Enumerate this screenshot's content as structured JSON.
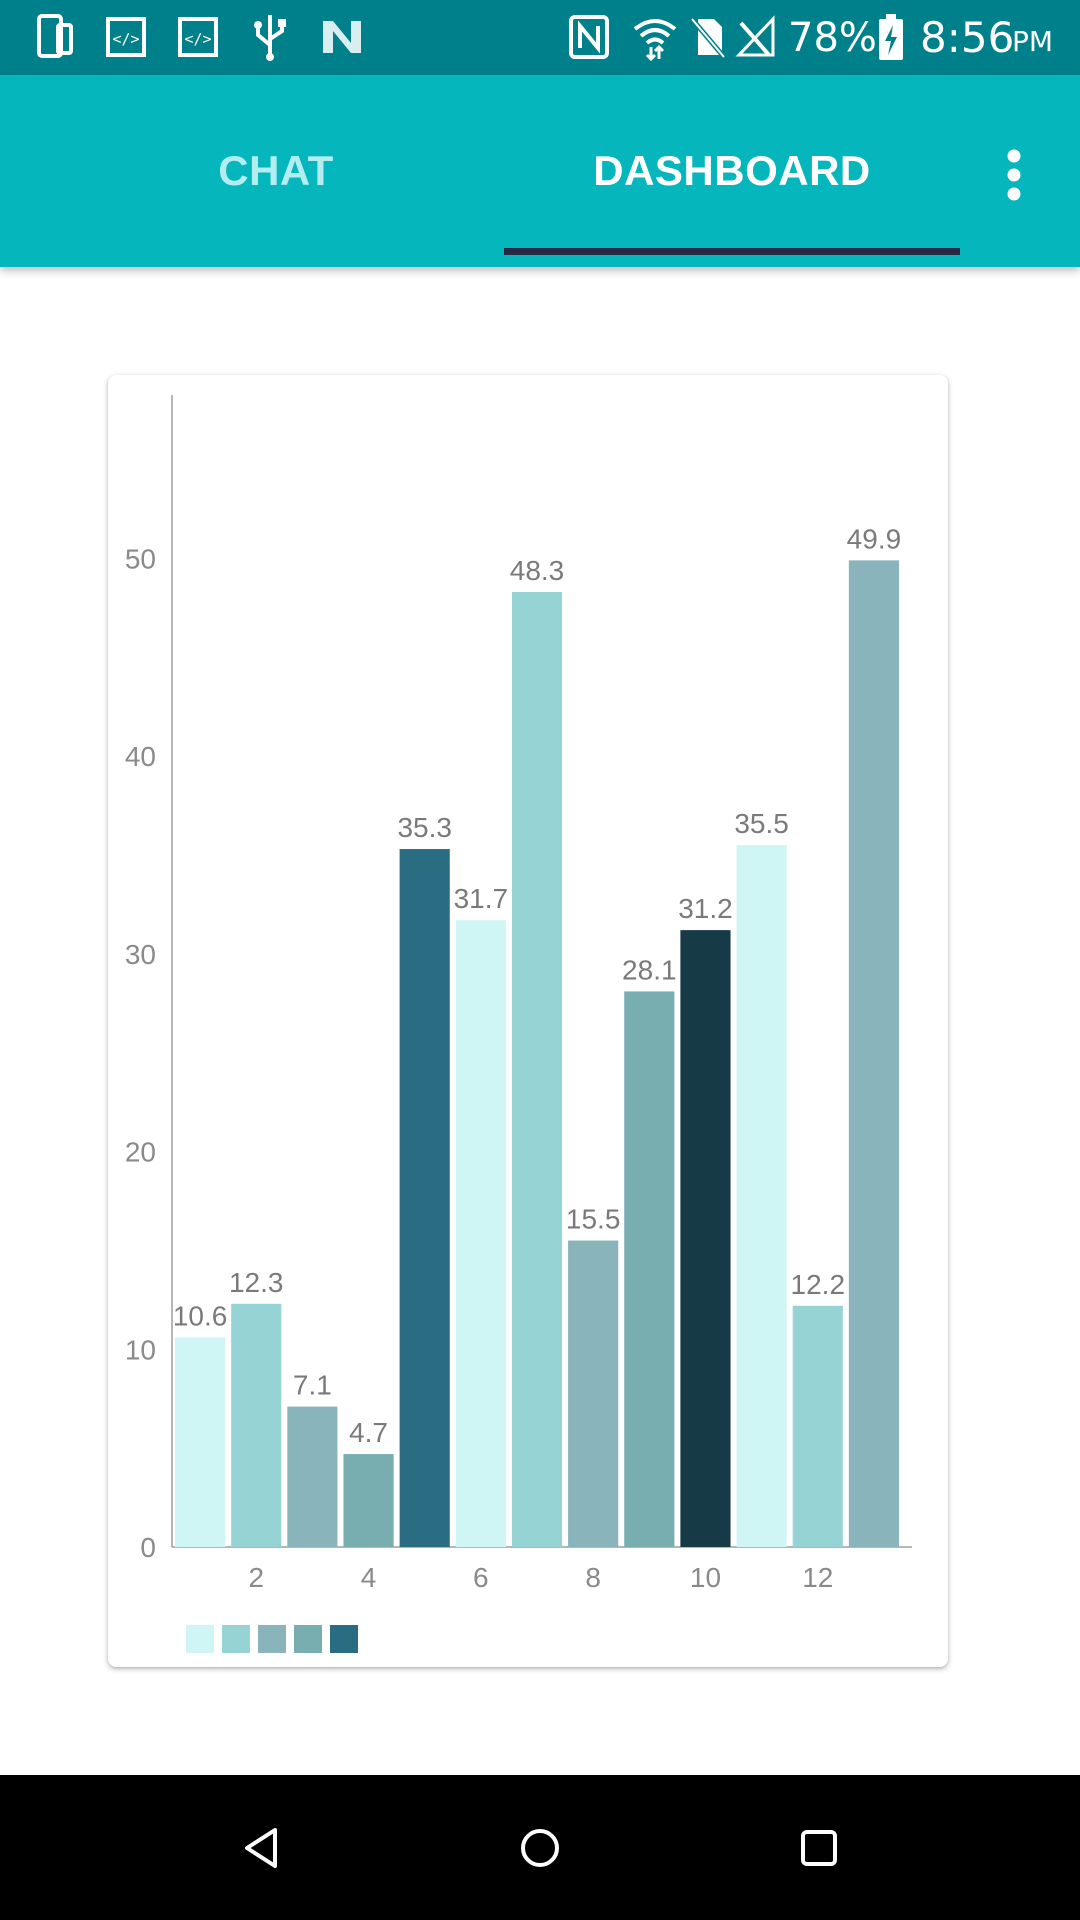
{
  "status_bar": {
    "battery": "78%",
    "time": "8:56",
    "ampm": "PM",
    "icons": [
      "phone-screen-icon",
      "code-icon",
      "code-icon",
      "usb-icon",
      "n-logo-icon",
      "nfc-icon",
      "wifi-icon",
      "no-sim-icon",
      "no-signal-icon",
      "battery-charging-icon"
    ]
  },
  "app_bar": {
    "tabs": [
      {
        "label": "CHAT",
        "selected": false
      },
      {
        "label": "DASHBOARD",
        "selected": true
      }
    ],
    "menu_icon": "more-vert-icon",
    "colors": {
      "background": "#06b6bd",
      "indicator": "#262b45",
      "status_bar": "#00808a"
    }
  },
  "chart_data": {
    "type": "bar",
    "x": [
      1,
      2,
      3,
      4,
      5,
      6,
      7,
      8,
      9,
      10,
      11,
      12,
      13
    ],
    "values": [
      10.6,
      12.3,
      7.1,
      4.7,
      35.3,
      31.7,
      48.3,
      15.5,
      28.1,
      31.2,
      35.5,
      12.2,
      49.9
    ],
    "data_labels": [
      "10.6",
      "12.3",
      "7.1",
      "4.7",
      "35.3",
      "31.7",
      "48.3",
      "15.5",
      "28.1",
      "31.2",
      "35.5",
      "12.2",
      "49.9"
    ],
    "bar_colors": [
      "#cff5f4",
      "#96d3d5",
      "#89b4bb",
      "#78aeb0",
      "#2a6c81",
      "#cff5f4",
      "#96d3d5",
      "#89b4bb",
      "#78aeb0",
      "#173a47",
      "#cff5f4",
      "#96d3d5",
      "#89b4bb"
    ],
    "y_ticks": [
      "0",
      "10",
      "20",
      "30",
      "40",
      "50"
    ],
    "y_tick_values": [
      0,
      10,
      20,
      30,
      40,
      50
    ],
    "x_ticks": [
      "2",
      "4",
      "6",
      "8",
      "10",
      "12"
    ],
    "x_tick_values": [
      2,
      4,
      6,
      8,
      10,
      12
    ],
    "ylim": [
      0,
      57
    ],
    "grid": false,
    "legend": {
      "placement": "bottom-left",
      "swatches": [
        "#cff5f4",
        "#96d3d5",
        "#89b4bb",
        "#78aeb0",
        "#2a6c81"
      ]
    }
  },
  "nav_bar": {
    "buttons": [
      "back-icon",
      "home-icon",
      "recents-icon"
    ]
  }
}
